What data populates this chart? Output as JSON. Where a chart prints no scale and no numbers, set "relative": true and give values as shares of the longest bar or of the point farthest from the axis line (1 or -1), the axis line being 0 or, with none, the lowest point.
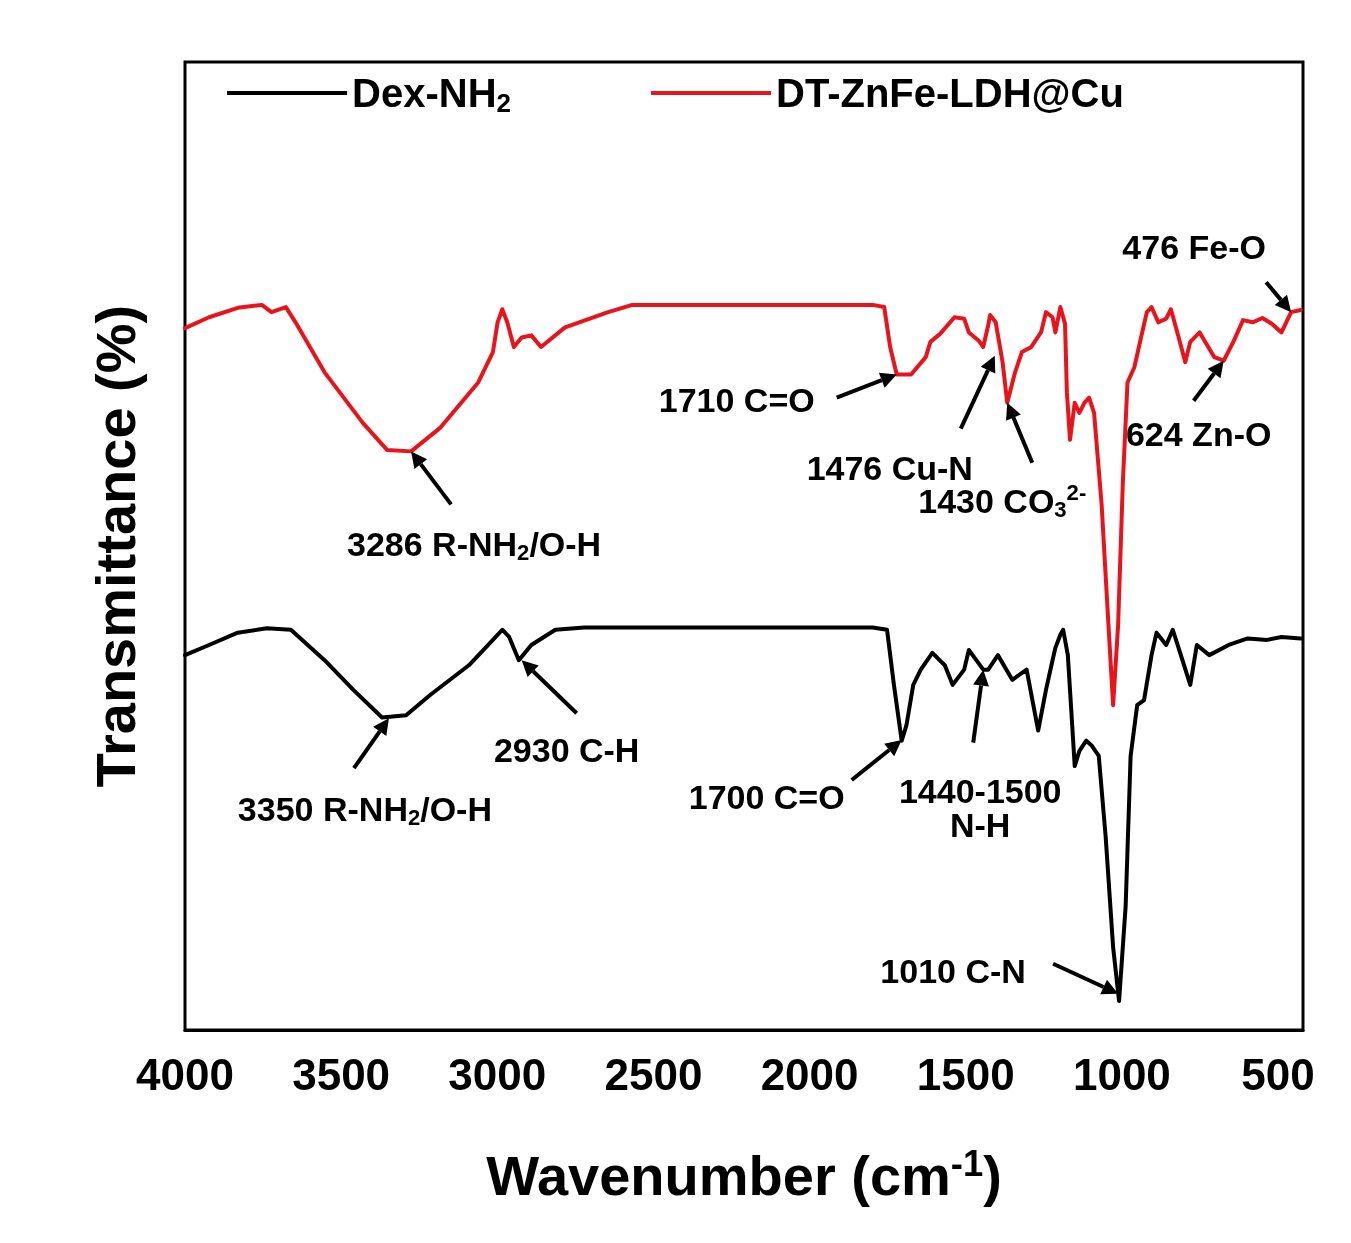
{
  "chart_data": {
    "type": "line",
    "relative": true,
    "xlabel": "Wavenumber (cm$^{-1}$)",
    "ylabel": "Transmittance (%)",
    "xlim": [
      4000,
      420
    ],
    "xticks": [
      4000,
      3500,
      3000,
      2500,
      2000,
      1500,
      1000,
      500
    ],
    "legend": "top",
    "grid": false,
    "marker": "none",
    "line_style": "solid",
    "series": [
      {
        "name": "Dex-NH$_{2}$",
        "color": "#000000",
        "x": [
          4000,
          3923,
          3831,
          3738,
          3661,
          3553,
          3461,
          3369,
          3292,
          3215,
          3091,
          3014,
          2984,
          2962,
          2931,
          2891,
          2814,
          2722,
          1798,
          1752,
          1730,
          1705,
          1690,
          1668,
          1644,
          1607,
          1567,
          1542,
          1505,
          1490,
          1459,
          1444,
          1428,
          1397,
          1351,
          1305,
          1268,
          1243,
          1222,
          1213,
          1197,
          1188,
          1173,
          1151,
          1136,
          1114,
          1096,
          1074,
          1052,
          1028,
          1009,
          988,
          972,
          951,
          929,
          905,
          889,
          858,
          837,
          806,
          781,
          760,
          720,
          658,
          597,
          535,
          489,
          427
        ],
        "values": [
          0.517,
          0.531,
          0.548,
          0.554,
          0.552,
          0.51,
          0.469,
          0.431,
          0.434,
          0.462,
          0.503,
          0.538,
          0.552,
          0.542,
          0.51,
          0.531,
          0.552,
          0.555,
          0.555,
          0.552,
          0.476,
          0.399,
          0.42,
          0.476,
          0.497,
          0.52,
          0.503,
          0.476,
          0.497,
          0.524,
          0.506,
          0.497,
          0.497,
          0.517,
          0.483,
          0.497,
          0.413,
          0.469,
          0.51,
          0.527,
          0.545,
          0.552,
          0.517,
          0.364,
          0.385,
          0.399,
          0.392,
          0.378,
          0.267,
          0.114,
          0.04,
          0.17,
          0.378,
          0.448,
          0.455,
          0.517,
          0.548,
          0.531,
          0.552,
          0.51,
          0.476,
          0.531,
          0.517,
          0.531,
          0.54,
          0.538,
          0.542,
          0.54
        ]
      },
      {
        "name": "DT-ZnFe-LDH@Cu",
        "color": "#e8141c",
        "x": [
          4000,
          3923,
          3831,
          3754,
          3723,
          3677,
          3646,
          3553,
          3430,
          3353,
          3276,
          3184,
          3061,
          3014,
          2999,
          2984,
          2968,
          2947,
          2922,
          2891,
          2860,
          2783,
          2645,
          2568,
          1798,
          1761,
          1742,
          1721,
          1675,
          1628,
          1613,
          1582,
          1536,
          1505,
          1490,
          1459,
          1444,
          1428,
          1422,
          1404,
          1382,
          1367,
          1342,
          1320,
          1290,
          1259,
          1243,
          1222,
          1213,
          1197,
          1182,
          1176,
          1166,
          1151,
          1136,
          1120,
          1105,
          1089,
          1065,
          1043,
          1028,
          1012,
          997,
          982,
          960,
          935,
          920,
          905,
          883,
          858,
          843,
          818,
          797,
          781,
          751,
          704,
          674,
          643,
          612,
          581,
          550,
          520,
          489,
          458,
          427
        ],
        "values": [
          0.968,
          0.983,
          0.996,
          1,
          0.99,
          0.997,
          0.976,
          0.907,
          0.837,
          0.8,
          0.798,
          0.83,
          0.893,
          0.935,
          0.976,
          0.994,
          0.976,
          0.942,
          0.955,
          0.958,
          0.942,
          0.969,
          0.99,
          1,
          1,
          0.997,
          0.942,
          0.904,
          0.904,
          0.928,
          0.949,
          0.96,
          0.983,
          0.981,
          0.962,
          0.951,
          0.942,
          0.972,
          0.986,
          0.976,
          0.921,
          0.865,
          0.907,
          0.935,
          0.942,
          0.962,
          0.99,
          0.983,
          0.962,
          0.997,
          0.974,
          0.879,
          0.814,
          0.865,
          0.851,
          0.865,
          0.872,
          0.851,
          0.726,
          0.559,
          0.448,
          0.559,
          0.754,
          0.893,
          0.914,
          0.962,
          0.99,
          0.997,
          0.976,
          0.981,
          0.994,
          0.955,
          0.921,
          0.949,
          0.962,
          0.928,
          0.923,
          0.949,
          0.979,
          0.976,
          0.982,
          0.974,
          0.962,
          0.99,
          0.993
        ]
      }
    ],
    "annotations": [
      {
        "text": "3286 R-NH$_{2}$/O-H",
        "x": 3276,
        "y": 0.798
      },
      {
        "text": "1710 C=O",
        "x": 1721,
        "y": 0.904
      },
      {
        "text": "1476 Cu-N",
        "x": 1407,
        "y": 0.93
      },
      {
        "text": "1430 CO$_{3}$$^{2-}$",
        "x": 1367,
        "y": 0.865
      },
      {
        "text": "624 Zn-O",
        "x": 674,
        "y": 0.923
      },
      {
        "text": "476 Fe-O",
        "x": 458,
        "y": 0.99
      },
      {
        "text": "3350 R-NH$_{2}$/O-H",
        "x": 3347,
        "y": 0.43
      },
      {
        "text": "2930 C-H",
        "x": 2922,
        "y": 0.51
      },
      {
        "text": "1700 C=O",
        "x": 1705,
        "y": 0.4
      },
      {
        "text": "1440-1500\nN-H",
        "x": 1444,
        "y": 0.497
      },
      {
        "text": "1010 C-N",
        "x": 1012,
        "y": 0.05
      }
    ]
  }
}
